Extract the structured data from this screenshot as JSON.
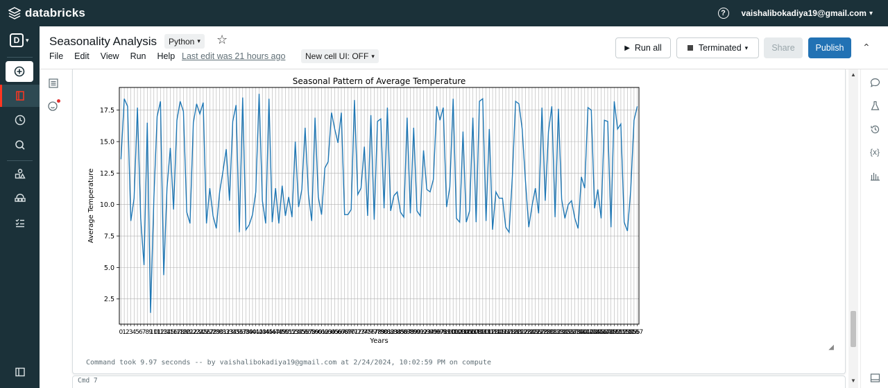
{
  "brand": {
    "name": "databricks"
  },
  "topbar": {
    "help_icon": "question-circle-icon",
    "user_email": "vaishalibokadiya19@gmail.com"
  },
  "workspace": {
    "letter": "D"
  },
  "notebook": {
    "title": "Seasonality Analysis",
    "language": "Python",
    "menu": [
      "File",
      "Edit",
      "View",
      "Run",
      "Help"
    ],
    "last_edit": "Last edit was 21 hours ago",
    "new_cell_ui": "New cell UI: OFF"
  },
  "toolbar": {
    "run_all_label": "Run all",
    "cluster_label": "Terminated",
    "share_label": "Share",
    "publish_label": "Publish"
  },
  "colors": {
    "topbar": "#1b3139",
    "publish": "#2272b4",
    "line": "#1f77b4",
    "active_rail": "#ff3621"
  },
  "cell": {
    "command_took": "Command took 9.97 seconds -- by vaishalibokadiya19@gmail.com at 2/24/2024, 10:02:59 PM on compute",
    "next_cmd": "Cmd 7"
  },
  "chart_data": {
    "type": "line",
    "title": "Seasonal Pattern of Average Temperature",
    "xlabel": "Years",
    "ylabel": "Average Temperature",
    "yticks": [
      "2.5",
      "5.0",
      "7.5",
      "10.0",
      "12.5",
      "15.0",
      "17.5"
    ],
    "ytick_values": [
      2.5,
      5.0,
      7.5,
      10.0,
      12.5,
      15.0,
      17.5
    ],
    "ylim": [
      0.5,
      19.3
    ],
    "grid": true,
    "x": [
      0,
      1,
      2,
      3,
      4,
      5,
      6,
      7,
      8,
      9,
      10,
      11,
      12,
      13,
      14,
      15,
      16,
      17,
      18,
      19,
      20,
      21,
      22,
      23,
      24,
      25,
      26,
      27,
      28,
      29,
      30,
      31,
      32,
      33,
      34,
      35,
      36,
      37,
      38,
      39,
      40,
      41,
      42,
      43,
      44,
      45,
      46,
      47,
      48,
      49,
      50,
      51,
      52,
      53,
      54,
      55,
      56,
      57,
      58,
      59,
      60,
      61,
      62,
      63,
      64,
      65,
      66,
      67,
      68,
      69,
      70,
      71,
      72,
      73,
      74,
      75,
      76,
      77,
      78,
      79,
      80,
      81,
      82,
      83,
      84,
      85,
      86,
      87,
      88,
      89,
      90,
      91,
      92,
      93,
      94,
      95,
      96,
      97,
      98,
      99,
      100,
      101,
      102,
      103,
      104,
      105,
      106,
      107,
      108,
      109,
      110,
      111,
      112,
      113,
      114,
      115,
      116,
      117,
      118,
      119,
      120,
      121,
      122,
      123,
      124,
      125,
      126,
      127,
      128,
      129,
      130,
      131,
      132,
      133,
      134,
      135,
      136,
      137,
      138,
      139,
      140,
      141,
      142,
      143,
      144,
      145,
      146,
      147,
      148,
      149,
      150,
      151,
      152,
      153,
      154,
      155,
      156,
      157
    ],
    "series": [
      {
        "values": [
          13.6,
          18.4,
          17.8,
          8.7,
          10.5,
          17.7,
          8.9,
          5.2,
          16.5,
          1.4,
          10.5,
          17.0,
          18.2,
          4.4,
          11.3,
          14.5,
          9.6,
          16.7,
          18.2,
          17.4,
          9.4,
          8.5,
          16.5,
          18.0,
          17.2,
          18.1,
          8.5,
          11.3,
          9.1,
          8.1,
          11.0,
          12.6,
          14.4,
          10.3,
          16.6,
          17.9,
          7.8,
          18.5,
          8.0,
          8.4,
          9.2,
          11.0,
          18.8,
          10.3,
          8.5,
          18.4,
          8.6,
          11.3,
          8.5,
          11.5,
          9.1,
          10.6,
          9.0,
          15.0,
          9.8,
          11.2,
          16.1,
          10.8,
          8.7,
          16.9,
          10.6,
          9.2,
          12.9,
          13.4,
          17.3,
          16.0,
          14.9,
          17.3,
          9.2,
          9.2,
          9.6,
          18.3,
          10.8,
          11.3,
          14.6,
          9.1,
          17.1,
          8.8,
          16.6,
          16.8,
          9.7,
          17.7,
          9.5,
          10.7,
          11.0,
          9.4,
          9.0,
          16.9,
          9.3,
          16.1,
          9.5,
          9.1,
          14.3,
          11.2,
          11.0,
          12.0,
          17.8,
          16.7,
          17.7,
          9.8,
          11.4,
          18.4,
          8.9,
          8.6,
          15.8,
          8.6,
          9.5,
          16.9,
          8.6,
          18.2,
          18.4,
          8.7,
          16.0,
          8.0,
          11.0,
          10.5,
          10.5,
          8.2,
          7.8,
          12.2,
          18.2,
          18.0,
          16.0,
          11.8,
          8.2,
          9.9,
          11.3,
          9.3,
          17.7,
          10.3,
          15.8,
          17.8,
          9.0,
          17.6,
          10.4,
          8.9,
          10.0,
          10.3,
          8.9,
          8.1,
          12.2,
          11.3,
          17.7,
          17.5,
          9.7,
          11.2,
          8.9,
          16.7,
          16.6,
          8.2,
          18.2,
          16.0,
          16.4,
          8.6,
          7.9,
          11.1,
          16.7,
          17.8
        ]
      }
    ]
  }
}
